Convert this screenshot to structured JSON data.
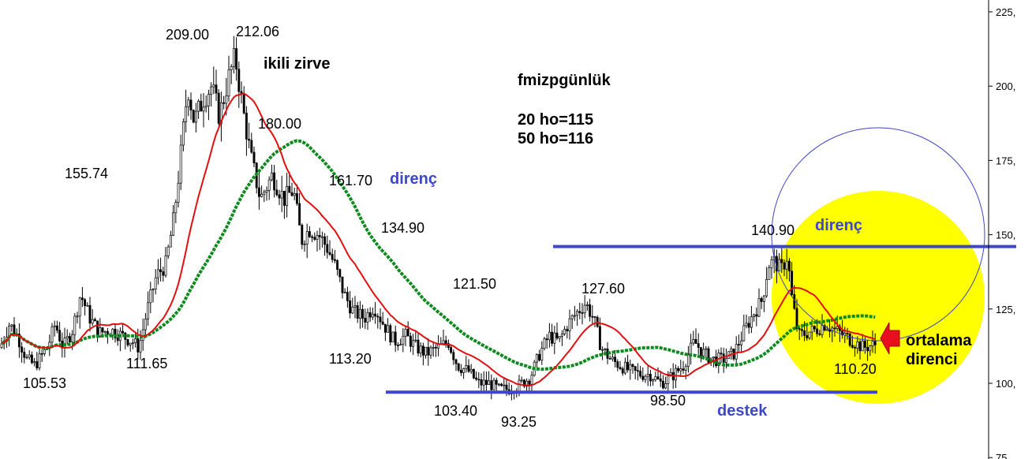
{
  "chart_data": {
    "type": "candlestick",
    "title": "fmizpgünlük",
    "ylim": [
      75,
      227
    ],
    "y_ticks": [
      "225,",
      "200,",
      "175,",
      "150,",
      "125,",
      "100,",
      "75"
    ],
    "grid": false,
    "colors": {
      "candles": "#000000",
      "ma_fast": "#e01010",
      "ma_slow": "#0f8a1e",
      "trendlines": "#3d47c9",
      "circle_outline": "#3d47c9",
      "circle_fill": "#ffff00",
      "arrow": "#e8101f"
    },
    "moving_averages": [
      {
        "label": "20 ho=115",
        "value": 115
      },
      {
        "label": "50 ho=116",
        "value": 116
      }
    ],
    "price_labels": [
      {
        "text": "209.00",
        "value": 209.0
      },
      {
        "text": "212.06",
        "value": 212.06
      },
      {
        "text": "180.00",
        "value": 180.0
      },
      {
        "text": "155.74",
        "value": 155.74
      },
      {
        "text": "161.70",
        "value": 161.7
      },
      {
        "text": "134.90",
        "value": 134.9
      },
      {
        "text": "121.50",
        "value": 121.5
      },
      {
        "text": "127.60",
        "value": 127.6
      },
      {
        "text": "140.90",
        "value": 140.9
      },
      {
        "text": "105.53",
        "value": 105.53
      },
      {
        "text": "111.65",
        "value": 111.65
      },
      {
        "text": "113.20",
        "value": 113.2
      },
      {
        "text": "103.40",
        "value": 103.4
      },
      {
        "text": "93.25",
        "value": 93.25
      },
      {
        "text": "98.50",
        "value": 98.5
      },
      {
        "text": "110.20",
        "value": 110.2
      }
    ],
    "annotations": {
      "double_top": "ikili zirve",
      "resistance_1": "direnç",
      "resistance_2": "direnç",
      "support": "destek",
      "ma_resistance_line1": "ortalama",
      "ma_resistance_line2": "direnci"
    },
    "resistance_level": 146,
    "support_level": 97
  }
}
